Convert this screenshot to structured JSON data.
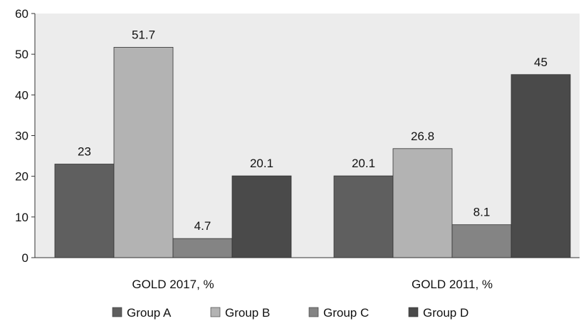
{
  "chart_data": {
    "type": "bar",
    "title": "",
    "xlabel": "",
    "ylabel": "",
    "categories": [
      "GOLD 2017, %",
      "GOLD 2011, %"
    ],
    "series": [
      {
        "name": "Group A",
        "values": [
          23,
          20.1
        ],
        "value_labels": [
          "23",
          "20.1"
        ],
        "color": "#5f5f5f"
      },
      {
        "name": "Group B",
        "values": [
          51.7,
          26.8
        ],
        "value_labels": [
          "51.7",
          "26.8"
        ],
        "color": "#b3b3b3"
      },
      {
        "name": "Group C",
        "values": [
          4.7,
          8.1
        ],
        "value_labels": [
          "4.7",
          "8.1"
        ],
        "color": "#848484"
      },
      {
        "name": "Group D",
        "values": [
          20.1,
          45
        ],
        "value_labels": [
          "20.1",
          "45"
        ],
        "color": "#4a4a4a"
      }
    ],
    "ylim": [
      0,
      60
    ],
    "y_ticks": [
      0,
      10,
      20,
      30,
      40,
      50,
      60
    ],
    "y_tick_labels": [
      "0",
      "10",
      "20",
      "30",
      "40",
      "50",
      "60"
    ],
    "grid": false,
    "legend_position": "bottom",
    "plot_background": "#ececec"
  }
}
